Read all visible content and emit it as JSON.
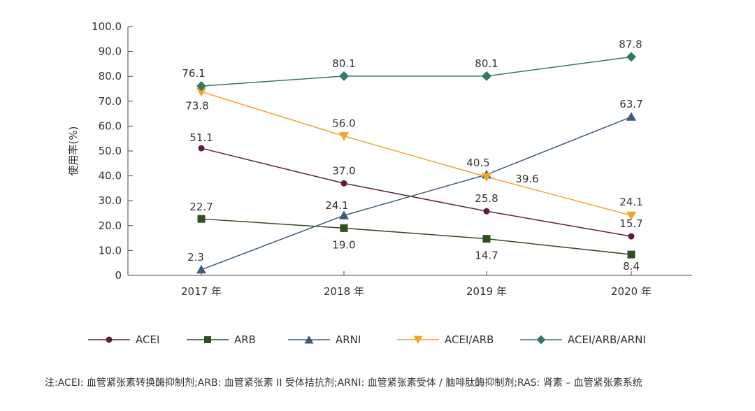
{
  "chart_data": {
    "type": "line",
    "ylabel": "使用率(%)",
    "ylim": [
      0,
      100
    ],
    "yticks": [
      "0",
      "10.0",
      "20.0",
      "30.0",
      "40.0",
      "50.0",
      "60.0",
      "70.0",
      "80.0",
      "90.0",
      "100.0"
    ],
    "categories": [
      "2017 年",
      "2018 年",
      "2019 年",
      "2020 年"
    ],
    "legend_position": "bottom",
    "series": [
      {
        "name": "ACEI",
        "color": "#5e1f35",
        "marker": "circle",
        "values": [
          51.1,
          37.0,
          25.8,
          15.7
        ]
      },
      {
        "name": "ARB",
        "color": "#2f4f22",
        "marker": "square",
        "values": [
          22.7,
          19.0,
          14.7,
          8.4
        ]
      },
      {
        "name": "ARNI",
        "color": "#3e5b7a",
        "marker": "triangle-up",
        "values": [
          2.3,
          24.1,
          40.5,
          63.7
        ]
      },
      {
        "name": "ACEI/ARB",
        "color": "#f4a329",
        "marker": "triangle-down",
        "values": [
          73.8,
          56.0,
          39.6,
          24.1
        ]
      },
      {
        "name": "ACEI/ARB/ARNI",
        "color": "#357a5c",
        "marker": "diamond",
        "values": [
          76.1,
          80.1,
          80.1,
          87.8
        ]
      }
    ]
  },
  "note": "注:ACEI: 血管紧张素转换酶抑制剂;ARB: 血管紧张素 II 受体拮抗剂;ARNI: 血管紧张素受体 / 脑啡肽酶抑制剂;RAS: 肾素 – 血管紧张素系统"
}
